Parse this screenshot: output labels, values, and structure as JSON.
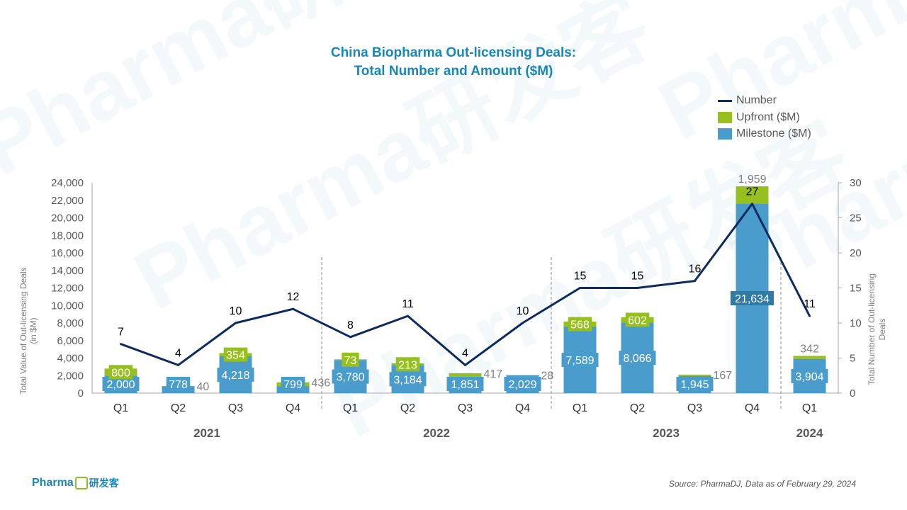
{
  "title_line1": "China Biopharma Out-licensing  Deals:",
  "title_line2": "Total Number  and Amount ($M)",
  "legend": {
    "number": "Number",
    "upfront": "Upfront ($M)",
    "milestone": "Milestone ($M)"
  },
  "source": "Source: PharmaDJ, Data as of February 29, 2024",
  "logo": {
    "text": "Pharma",
    "mark": "DJ",
    "cn": "研发客"
  },
  "watermark": "Pharma研发客",
  "colors": {
    "milestone": "#4a9ccc",
    "upfront": "#96bf1f",
    "line": "#0d2b5e",
    "title": "#1a86b8",
    "axis_text": "#595959"
  },
  "chart_data": {
    "type": "bar",
    "stacked": true,
    "title": "China Biopharma Out-licensing  Deals: Total Number  and Amount ($M)",
    "categories": [
      "Q1",
      "Q2",
      "Q3",
      "Q4",
      "Q1",
      "Q2",
      "Q3",
      "Q4",
      "Q1",
      "Q2",
      "Q3",
      "Q4",
      "Q1"
    ],
    "year_groups": [
      {
        "year": "2021",
        "start": 0,
        "end": 3
      },
      {
        "year": "2022",
        "start": 4,
        "end": 7
      },
      {
        "year": "2023",
        "start": 8,
        "end": 11
      },
      {
        "year": "2024",
        "start": 12,
        "end": 12
      }
    ],
    "series": [
      {
        "name": "Milestone ($M)",
        "type": "bar",
        "axis": "left",
        "values": [
          2000,
          778,
          4218,
          799,
          3780,
          3184,
          1851,
          2029,
          7589,
          8066,
          1945,
          21634,
          3904
        ]
      },
      {
        "name": "Upfront ($M)",
        "type": "bar",
        "axis": "left",
        "values": [
          800,
          40,
          354,
          436,
          73,
          213,
          417,
          28,
          568,
          602,
          167,
          1959,
          342
        ]
      },
      {
        "name": "Number",
        "type": "line",
        "axis": "right",
        "values": [
          7,
          4,
          10,
          12,
          8,
          11,
          4,
          10,
          15,
          15,
          16,
          27,
          11
        ]
      }
    ],
    "ylabel": "Total Value of Out-licensing Deals (in $M)",
    "ylabel_right": "Total Number of Out-licensing Deals",
    "ylim": [
      0,
      24000
    ],
    "yticks": [
      "0",
      "2,000",
      "4,000",
      "6,000",
      "8,000",
      "10,000",
      "12,000",
      "14,000",
      "16,000",
      "18,000",
      "20,000",
      "22,000",
      "24,000"
    ],
    "ylim_right": [
      0,
      30
    ],
    "yticks_right": [
      "0",
      "5",
      "10",
      "15",
      "20",
      "25",
      "30"
    ],
    "legend_position": "top-right",
    "grid": false
  }
}
